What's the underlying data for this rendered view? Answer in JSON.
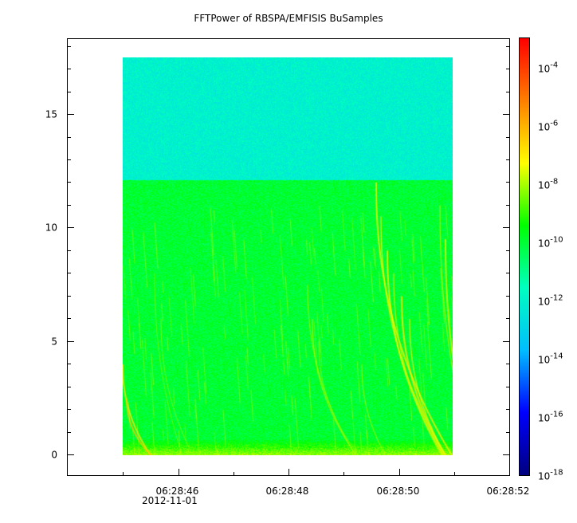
{
  "chart_data": {
    "type": "heatmap",
    "title": "FFTPower of RBSPA/EMFISIS  BuSamples",
    "x_axis": {
      "kind": "time",
      "date": "2012-11-01",
      "range": [
        "06:28:44.00",
        "06:28:52.00"
      ],
      "major_ticks": [
        "06:28:46",
        "06:28:48",
        "06:28:50",
        "06:28:52"
      ],
      "minor_ticks": [
        "06:28:45",
        "06:28:47",
        "06:28:49",
        "06:28:51"
      ],
      "data_extent": [
        "06:28:45.00",
        "06:28:51.20"
      ]
    },
    "y_axis": {
      "label": "",
      "range": [
        -0.9,
        18.3
      ],
      "ticks": [
        0,
        5,
        10,
        15
      ],
      "data_extent": [
        0,
        17.5
      ]
    },
    "z_axis": {
      "scale": "log",
      "range": [
        1e-18,
        0.001
      ],
      "colormap": [
        "#00007f",
        "#0000ff",
        "#00bfff",
        "#00ffc0",
        "#00ff00",
        "#ffff00",
        "#ff8000",
        "#ff0000"
      ],
      "tick_bases": [
        "10",
        "10",
        "10",
        "10",
        "10",
        "10",
        "10",
        "10"
      ],
      "tick_exponents": [
        "-4",
        "-6",
        "-8",
        "-10",
        "-12",
        "-14",
        "-16",
        "-18"
      ]
    },
    "background_levels": {
      "above_12": 1e-12,
      "below_12": 1e-10,
      "near_zero": 1e-08
    },
    "grid": false,
    "legend": "colorbar-right"
  }
}
